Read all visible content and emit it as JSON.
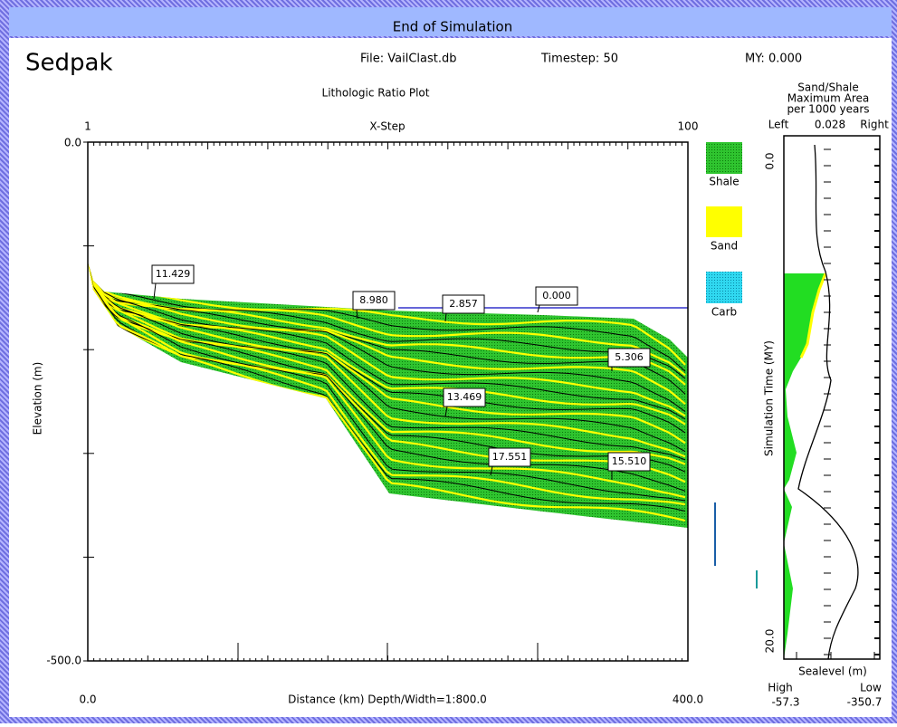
{
  "window": {
    "title": "End of Simulation"
  },
  "header": {
    "app": "Sedpak",
    "file": "File: VailClast.db",
    "timestep": "Timestep:  50",
    "my": "MY: 0.000"
  },
  "plot": {
    "title": "Lithologic Ratio Plot",
    "top_axis": {
      "start": "1",
      "label": "X-Step",
      "end": "100"
    },
    "left_axis": {
      "top": "0.0",
      "bottom": "-500.0",
      "label": "Elevation (m)"
    },
    "bottom_axis": {
      "start": "0.0",
      "label": "Distance (km) Depth/Width=1:800.0",
      "end": "400.0"
    },
    "labels": [
      "11.429",
      "8.980",
      "2.857",
      "0.000",
      "5.306",
      "13.469",
      "17.551",
      "15.510"
    ]
  },
  "legend": [
    "Shale",
    "Sand",
    "Carb"
  ],
  "side_panel": {
    "title": [
      "Sand/Shale",
      "Maximum Area",
      "per 1000 years"
    ],
    "left": "Left",
    "scale": "0.028",
    "right": "Right",
    "time_top": "0.0",
    "time_bottom": "20.0",
    "time_label": "Simulation Time (MY)",
    "sealevel_label": "Sealevel (m)",
    "high": "High",
    "low": "Low",
    "high_value": "-57.3",
    "low_value": "-350.7"
  }
}
